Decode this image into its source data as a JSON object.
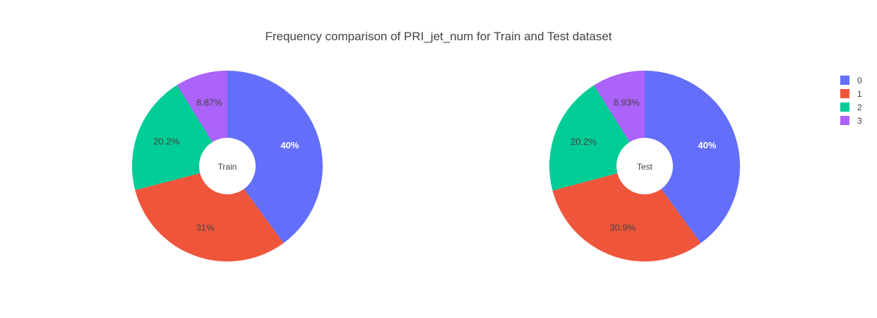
{
  "chart_data": {
    "type": "pie",
    "title": "Frequency comparison of PRI_jet_num for Train and Test dataset",
    "hole": true,
    "legend": {
      "placement": "top-right",
      "entries": [
        {
          "label": "0",
          "color": "#636efa"
        },
        {
          "label": "1",
          "color": "#ef553b"
        },
        {
          "label": "2",
          "color": "#00cc96"
        },
        {
          "label": "3",
          "color": "#ab63fa"
        }
      ]
    },
    "charts": [
      {
        "name": "Train",
        "labels": [
          "0",
          "1",
          "2",
          "3"
        ],
        "values": [
          40,
          31,
          20.2,
          8.87
        ],
        "value_labels": [
          "40%",
          "31%",
          "20.2%",
          "8.87%"
        ]
      },
      {
        "name": "Test",
        "labels": [
          "0",
          "1",
          "2",
          "3"
        ],
        "values": [
          40,
          30.9,
          20.2,
          8.93
        ],
        "value_labels": [
          "40%",
          "30.9%",
          "20.2%",
          "8.93%"
        ]
      }
    ]
  }
}
